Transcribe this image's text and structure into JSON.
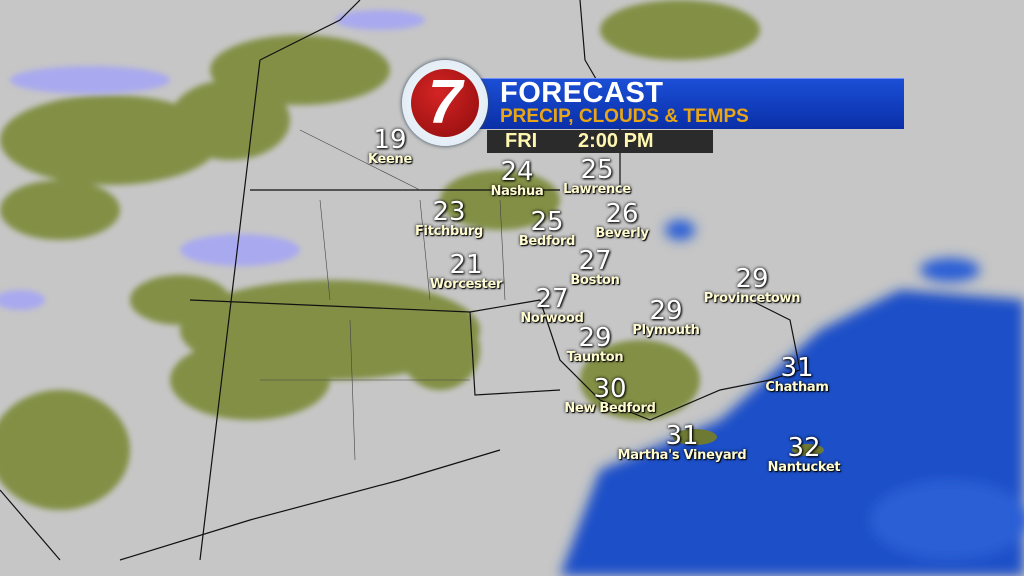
{
  "header": {
    "logo_text": "7",
    "title": "FORECAST",
    "subtitle": "PRECIP, CLOUDS & TEMPS",
    "day": "FRI",
    "time": "2:00 PM"
  },
  "colors": {
    "banner": "#1440c0",
    "subtitle": "#e8a516",
    "ocean": "#1d4fc8",
    "city_label": "#fffbd0"
  },
  "cities": [
    {
      "name": "Keene",
      "temp": "19"
    },
    {
      "name": "Nashua",
      "temp": "24"
    },
    {
      "name": "Lawrence",
      "temp": "25"
    },
    {
      "name": "Fitchburg",
      "temp": "23"
    },
    {
      "name": "Bedford",
      "temp": "25"
    },
    {
      "name": "Beverly",
      "temp": "26"
    },
    {
      "name": "Boston",
      "temp": "27"
    },
    {
      "name": "Worcester",
      "temp": "21"
    },
    {
      "name": "Norwood",
      "temp": "27"
    },
    {
      "name": "Plymouth",
      "temp": "29"
    },
    {
      "name": "Provincetown",
      "temp": "29"
    },
    {
      "name": "Taunton",
      "temp": "29"
    },
    {
      "name": "New Bedford",
      "temp": "30"
    },
    {
      "name": "Chatham",
      "temp": "31"
    },
    {
      "name": "Martha's Vineyard",
      "temp": "31"
    },
    {
      "name": "Nantucket",
      "temp": "32"
    }
  ]
}
